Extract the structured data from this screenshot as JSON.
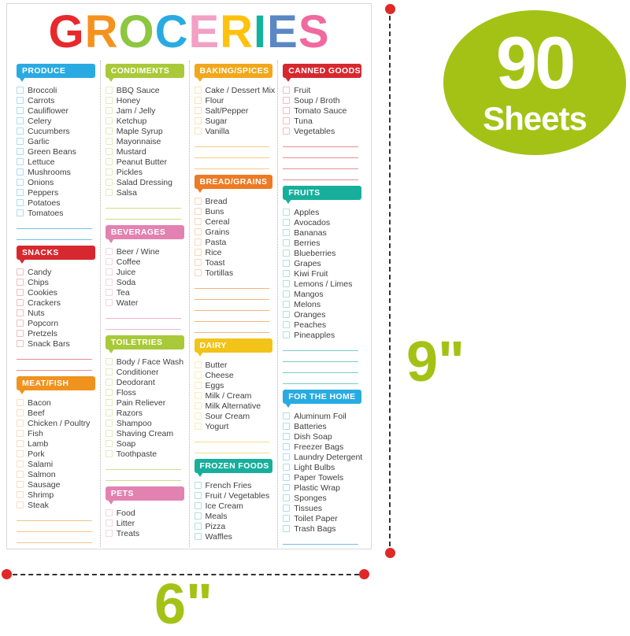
{
  "title": {
    "text": "GROCERIES",
    "letters": [
      {
        "ch": "G",
        "color": "#e8282b"
      },
      {
        "ch": "R",
        "color": "#f5921e"
      },
      {
        "ch": "O",
        "color": "#8dc63f"
      },
      {
        "ch": "C",
        "color": "#29abe2"
      },
      {
        "ch": "E",
        "color": "#f2a0c3"
      },
      {
        "ch": "R",
        "color": "#ffc20e"
      },
      {
        "ch": "I",
        "color": "#13b2a0"
      },
      {
        "ch": "E",
        "color": "#5b87c5"
      },
      {
        "ch": "S",
        "color": "#f0699f"
      }
    ]
  },
  "badge": {
    "value": "90",
    "unit": "Sheets",
    "color": "#a4c215"
  },
  "dimensions": {
    "height_label": "9\"",
    "width_label": "6\"",
    "accent_color": "#a4c215",
    "dot_color": "#e02828"
  },
  "columns": [
    {
      "sections": [
        {
          "name": "PRODUCE",
          "color": "#29abe2",
          "line": "#6fc2eb",
          "box": "#abdcf4",
          "blank_lines": 2,
          "items": [
            "Broccoli",
            "Carrots",
            "Cauliflower",
            "Celery",
            "Cucumbers",
            "Garlic",
            "Green Beans",
            "Lettuce",
            "Mushrooms",
            "Onions",
            "Peppers",
            "Potatoes",
            "Tomatoes"
          ]
        },
        {
          "name": "SNACKS",
          "color": "#d7282f",
          "line": "#e78f93",
          "box": "#f0bdbf",
          "blank_lines": 2,
          "items": [
            "Candy",
            "Chips",
            "Cookies",
            "Crackers",
            "Nuts",
            "Popcorn",
            "Pretzels",
            "Snack Bars"
          ]
        },
        {
          "name": "MEAT/FISH",
          "color": "#f0921e",
          "line": "#f6c38b",
          "box": "#faddbe",
          "blank_lines": 4,
          "items": [
            "Bacon",
            "Beef",
            "Chicken / Poultry",
            "Fish",
            "Lamb",
            "Pork",
            "Salami",
            "Salmon",
            "Sausage",
            "Shrimp",
            "Steak"
          ]
        }
      ]
    },
    {
      "sections": [
        {
          "name": "CONDIMENTS",
          "color": "#a9c938",
          "line": "#cbdf8c",
          "box": "#e0ebbc",
          "blank_lines": 2,
          "items": [
            "BBQ Sauce",
            "Honey",
            "Jam / Jelly",
            "Ketchup",
            "Maple Syrup",
            "Mayonnaise",
            "Mustard",
            "Peanut Butter",
            "Pickles",
            "Salad Dressing",
            "Salsa"
          ]
        },
        {
          "name": "BEVERAGES",
          "color": "#e282b1",
          "line": "#eeb4d0",
          "box": "#f5d4e4",
          "blank_lines": 2,
          "items": [
            "Beer / Wine",
            "Coffee",
            "Juice",
            "Soda",
            "Tea",
            "Water"
          ]
        },
        {
          "name": "TOILETRIES",
          "color": "#a9c938",
          "line": "#cbdf8c",
          "box": "#e0ebbc",
          "blank_lines": 2,
          "items": [
            "Body / Face Wash",
            "Conditioner",
            "Deodorant",
            "Floss",
            "Pain Reliever",
            "Razors",
            "Shampoo",
            "Shaving Cream",
            "Soap",
            "Toothpaste"
          ]
        },
        {
          "name": "PETS",
          "color": "#e282b1",
          "line": "#eeb4d0",
          "box": "#f5d4e4",
          "blank_lines": 2,
          "items": [
            "Food",
            "Litter",
            "Treats"
          ]
        }
      ]
    },
    {
      "sections": [
        {
          "name": "BAKING/SPICES",
          "color": "#f2a71b",
          "line": "#f8cb84",
          "box": "#fbe1b8",
          "blank_lines": 3,
          "items": [
            "Cake / Dessert Mix",
            "Flour",
            "Salt/Pepper",
            "Sugar",
            "Vanilla"
          ]
        },
        {
          "name": "BREAD/GRAINS",
          "color": "#ee7a23",
          "line": "#f5b57e",
          "box": "#fad5b4",
          "blank_lines": 5,
          "items": [
            "Bread",
            "Buns",
            "Cereal",
            "Grains",
            "Pasta",
            "Rice",
            "Toast",
            "Tortillas"
          ]
        },
        {
          "name": "DAIRY",
          "color": "#f2c318",
          "line": "#f8dd83",
          "box": "#fbebb7",
          "blank_lines": 2,
          "items": [
            "Butter",
            "Cheese",
            "Eggs",
            "Milk / Cream",
            "Milk Alternative",
            "Sour Cream",
            "Yogurt"
          ]
        },
        {
          "name": "FROZEN FOODS",
          "color": "#17af9b",
          "line": "#74cfc3",
          "box": "#ade2da",
          "blank_lines": 3,
          "items": [
            "French Fries",
            "Fruit / Vegetables",
            "Ice Cream",
            "Meals",
            "Pizza",
            "Waffles"
          ]
        }
      ]
    },
    {
      "sections": [
        {
          "name": "CANNED GOODS",
          "color": "#d7282f",
          "line": "#e78f93",
          "box": "#f0bdbf",
          "blank_lines": 4,
          "items": [
            "Fruit",
            "Soup / Broth",
            "Tomato Sauce",
            "Tuna",
            "Vegetables"
          ]
        },
        {
          "name": "FRUITS",
          "color": "#17af9b",
          "line": "#74cfc3",
          "box": "#ade2da",
          "blank_lines": 4,
          "items": [
            "Apples",
            "Avocados",
            "Bananas",
            "Berries",
            "Blueberries",
            "Grapes",
            "Kiwi Fruit",
            "Lemons / Limes",
            "Mangos",
            "Melons",
            "Oranges",
            "Peaches",
            "Pineapples"
          ]
        },
        {
          "name": "FOR THE HOME",
          "color": "#29abe2",
          "line": "#6fc2eb",
          "box": "#abdcf4",
          "blank_lines": 4,
          "items": [
            "Aluminum Foil",
            "Batteries",
            "Dish Soap",
            "Freezer Bags",
            "Laundry Detergent",
            "Light Bulbs",
            "Paper Towels",
            "Plastic Wrap",
            "Sponges",
            "Tissues",
            "Toilet Paper",
            "Trash Bags"
          ]
        }
      ]
    }
  ]
}
